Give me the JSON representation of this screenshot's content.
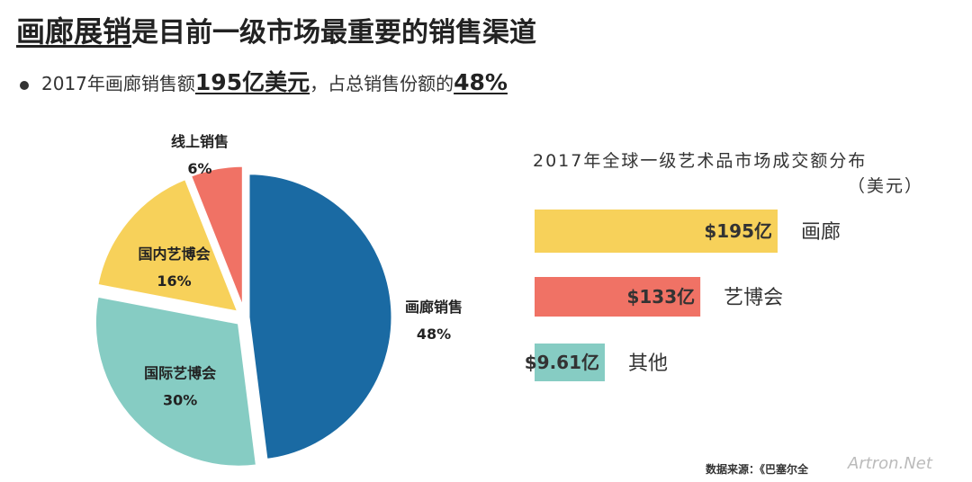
{
  "header": {
    "title_em": "画廊展销",
    "title_rest": "是目前一级市场最重要的销售渠道"
  },
  "bullet": {
    "prefix": "2017年画廊销售额",
    "value1": "195亿美元",
    "middle": "，占总销售份额的",
    "value2": "48%"
  },
  "chart_data": [
    {
      "type": "pie",
      "slices": [
        {
          "label": "画廊销售",
          "value": 48,
          "display": "48%",
          "color": "#1a6aa3"
        },
        {
          "label": "国际艺博会",
          "value": 30,
          "display": "30%",
          "color": "#86ccc3"
        },
        {
          "label": "国内艺博会",
          "value": 16,
          "display": "16%",
          "color": "#f7d15a"
        },
        {
          "label": "线上销售",
          "value": 6,
          "display": "6%",
          "color": "#f07265"
        }
      ]
    },
    {
      "type": "bar",
      "title": "2017年全球一级艺术品市场成交额分布",
      "unit": "（美元）",
      "categories": [
        "画廊",
        "艺博会",
        "其他"
      ],
      "values": [
        195,
        133,
        9.61
      ],
      "value_labels": [
        "$195亿",
        "$133亿",
        "$9.61亿"
      ],
      "colors": [
        "#f7d15a",
        "#f07265",
        "#86ccc3"
      ]
    }
  ],
  "footer": {
    "source": "数据来源：《巴塞尔全",
    "watermark": "Artron.Net"
  }
}
